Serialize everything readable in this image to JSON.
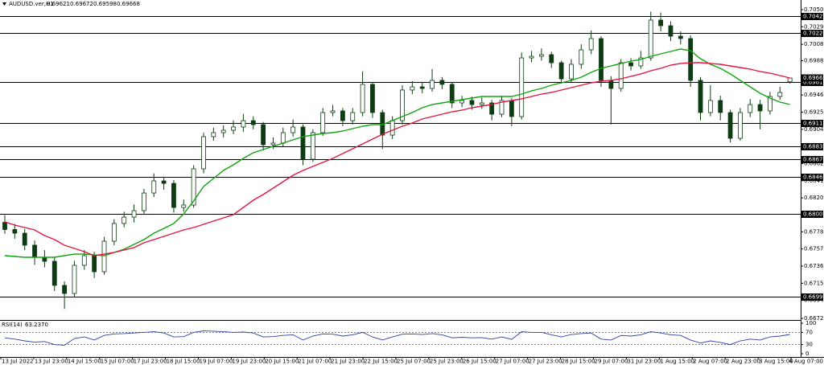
{
  "chart_data": {
    "type": "candlestick",
    "symbol": "AUDUSD.ver,H1",
    "header_ohlc": [
      0.69621,
      0.69672,
      0.69598,
      0.69668
    ],
    "candle_color": "#0d3b12",
    "open": [
      0.679,
      0.67813,
      0.67768,
      0.67621,
      0.67473,
      0.67424,
      0.67129,
      0.6703,
      0.67375,
      0.67493,
      0.67296,
      0.6767,
      0.67887,
      0.67965,
      0.68044,
      0.6826,
      0.68408,
      0.68378,
      0.68083,
      0.68113,
      0.68556,
      0.6895,
      0.68999,
      0.69028,
      0.69068,
      0.69146,
      0.69097,
      0.68851,
      0.68871,
      0.68999,
      0.69068,
      0.68674,
      0.68999,
      0.69245,
      0.69265,
      0.69146,
      0.69245,
      0.6959,
      0.69245,
      0.68969,
      0.69146,
      0.69521,
      0.6956,
      0.6954,
      0.69639,
      0.6959,
      0.69363,
      0.69393,
      0.69343,
      0.69363,
      0.69225,
      0.69393,
      0.69196,
      0.69914,
      0.69934,
      0.69954,
      0.69855,
      0.69658,
      0.69836,
      0.70013,
      0.70151,
      0.69639,
      0.6954,
      0.69855,
      0.69816,
      0.69914,
      0.70377,
      0.70308,
      0.7018,
      0.70151,
      0.69639,
      0.69245,
      0.69393,
      0.69245,
      0.6893,
      0.69245,
      0.69343,
      0.69265,
      0.69442,
      0.69621
    ],
    "high": [
      0.6799,
      0.6788,
      0.6782,
      0.6768,
      0.6756,
      0.6748,
      0.6718,
      0.6743,
      0.6756,
      0.6754,
      0.6772,
      0.6794,
      0.6803,
      0.6812,
      0.6831,
      0.685,
      0.6846,
      0.6842,
      0.6818,
      0.686,
      0.69,
      0.6906,
      0.6909,
      0.6915,
      0.6923,
      0.692,
      0.6913,
      0.6894,
      0.6906,
      0.6916,
      0.691,
      0.6904,
      0.693,
      0.6934,
      0.693,
      0.693,
      0.6975,
      0.6962,
      0.6928,
      0.692,
      0.6958,
      0.6963,
      0.6962,
      0.6978,
      0.6968,
      0.6962,
      0.6945,
      0.6944,
      0.6943,
      0.694,
      0.6945,
      0.6942,
      0.6998,
      0.7,
      0.7003,
      0.6999,
      0.6988,
      0.699,
      0.7008,
      0.7025,
      0.7018,
      0.6969,
      0.699,
      0.6991,
      0.7,
      0.7048,
      0.7047,
      0.7036,
      0.7024,
      0.7019,
      0.6968,
      0.6958,
      0.6945,
      0.6928,
      0.693,
      0.6941,
      0.694,
      0.695,
      0.6956,
      0.69672
    ],
    "low": [
      0.6776,
      0.677,
      0.6756,
      0.6738,
      0.6735,
      0.6706,
      0.6684,
      0.6699,
      0.6732,
      0.6722,
      0.6726,
      0.6762,
      0.6784,
      0.679,
      0.68,
      0.6821,
      0.683,
      0.6802,
      0.6803,
      0.6808,
      0.685,
      0.689,
      0.6894,
      0.6898,
      0.6901,
      0.6904,
      0.6878,
      0.688,
      0.6883,
      0.6895,
      0.686,
      0.6864,
      0.6896,
      0.692,
      0.6908,
      0.691,
      0.692,
      0.6918,
      0.688,
      0.6892,
      0.691,
      0.6947,
      0.6948,
      0.695,
      0.6953,
      0.693,
      0.6931,
      0.6928,
      0.6929,
      0.6915,
      0.6919,
      0.6908,
      0.6916,
      0.6986,
      0.6988,
      0.6979,
      0.696,
      0.6962,
      0.6978,
      0.6996,
      0.6956,
      0.691,
      0.695,
      0.6976,
      0.6978,
      0.6988,
      0.7024,
      0.7012,
      0.7008,
      0.6956,
      0.6915,
      0.692,
      0.6915,
      0.6888,
      0.689,
      0.6919,
      0.6904,
      0.6922,
      0.694,
      0.69598
    ],
    "close": [
      0.67813,
      0.67768,
      0.67621,
      0.67473,
      0.67424,
      0.67129,
      0.6703,
      0.67375,
      0.67493,
      0.67296,
      0.6767,
      0.67887,
      0.67965,
      0.68044,
      0.6826,
      0.68408,
      0.68378,
      0.68083,
      0.68113,
      0.68556,
      0.6895,
      0.68999,
      0.69028,
      0.69068,
      0.69146,
      0.69097,
      0.68851,
      0.68871,
      0.68999,
      0.69068,
      0.68674,
      0.68999,
      0.69245,
      0.69265,
      0.69146,
      0.69245,
      0.6959,
      0.69245,
      0.68969,
      0.69146,
      0.69521,
      0.6956,
      0.6954,
      0.69639,
      0.6959,
      0.69363,
      0.69393,
      0.69343,
      0.69363,
      0.69225,
      0.69393,
      0.69196,
      0.69914,
      0.69934,
      0.69954,
      0.69855,
      0.69658,
      0.69836,
      0.70013,
      0.70151,
      0.69639,
      0.6954,
      0.69855,
      0.69816,
      0.69914,
      0.70377,
      0.70308,
      0.7018,
      0.70151,
      0.69639,
      0.69245,
      0.69393,
      0.69245,
      0.6893,
      0.69245,
      0.69343,
      0.69265,
      0.69442,
      0.69491,
      0.69668
    ],
    "ma_lines": [
      {
        "color": "#11a311",
        "values": [
          0.67493,
          0.67483,
          0.67473,
          0.67473,
          0.67473,
          0.67473,
          0.67493,
          0.67512,
          0.67512,
          0.67503,
          0.67493,
          0.67532,
          0.67572,
          0.67631,
          0.6769,
          0.67768,
          0.67827,
          0.67887,
          0.68005,
          0.68162,
          0.68339,
          0.68438,
          0.68536,
          0.68605,
          0.68684,
          0.68753,
          0.68792,
          0.68832,
          0.68871,
          0.6891,
          0.6895,
          0.68969,
          0.68989,
          0.68999,
          0.69019,
          0.69048,
          0.69078,
          0.69097,
          0.69097,
          0.69147,
          0.69196,
          0.69245,
          0.69304,
          0.69343,
          0.69363,
          0.69383,
          0.69403,
          0.69422,
          0.69442,
          0.69442,
          0.69442,
          0.69442,
          0.69471,
          0.69511,
          0.6954,
          0.6958,
          0.69609,
          0.69639,
          0.69678,
          0.69737,
          0.69786,
          0.69816,
          0.69846,
          0.69875,
          0.69895,
          0.69934,
          0.69964,
          0.69993,
          0.70023,
          0.70003,
          0.69905,
          0.69836,
          0.69786,
          0.69718,
          0.69639,
          0.6956,
          0.69481,
          0.69422,
          0.69373,
          0.69343
        ]
      },
      {
        "color": "#e3163f",
        "values": [
          0.67906,
          0.67867,
          0.67837,
          0.67808,
          0.67739,
          0.6769,
          0.67621,
          0.67581,
          0.67542,
          0.67493,
          0.67512,
          0.67532,
          0.67562,
          0.67591,
          0.6765,
          0.6769,
          0.67729,
          0.67768,
          0.67808,
          0.67837,
          0.67877,
          0.67916,
          0.67955,
          0.67995,
          0.68083,
          0.68172,
          0.68241,
          0.6832,
          0.68398,
          0.68477,
          0.68536,
          0.68585,
          0.68635,
          0.68684,
          0.68743,
          0.68802,
          0.68861,
          0.6892,
          0.68979,
          0.69028,
          0.69078,
          0.69117,
          0.69166,
          0.69196,
          0.69225,
          0.69255,
          0.69275,
          0.69304,
          0.69324,
          0.69343,
          0.69373,
          0.69393,
          0.69412,
          0.69442,
          0.69471,
          0.69491,
          0.69521,
          0.6955,
          0.6958,
          0.69609,
          0.69629,
          0.69639,
          0.69658,
          0.69688,
          0.69718,
          0.69757,
          0.69786,
          0.69826,
          0.69846,
          0.69855,
          0.69855,
          0.69846,
          0.69836,
          0.69816,
          0.69796,
          0.69777,
          0.69747,
          0.69727,
          0.69698,
          0.69668
        ]
      }
    ],
    "ylim": [
      0.66725,
      0.70505
    ],
    "yticks": [
      {
        "value": 0.70505,
        "label": "0.70505"
      },
      {
        "value": 0.70295,
        "label": "0.70295"
      },
      {
        "value": 0.7008,
        "label": "0.70080"
      },
      {
        "value": 0.6988,
        "label": "0.69880"
      },
      {
        "value": 0.6946,
        "label": "0.69460"
      },
      {
        "value": 0.6925,
        "label": "0.69250"
      },
      {
        "value": 0.6904,
        "label": "0.69040"
      },
      {
        "value": 0.6862,
        "label": "0.68620"
      },
      {
        "value": 0.6841,
        "label": "0.68410"
      },
      {
        "value": 0.682,
        "label": "0.68200"
      },
      {
        "value": 0.67785,
        "label": "0.67785"
      },
      {
        "value": 0.67575,
        "label": "0.67575"
      },
      {
        "value": 0.67365,
        "label": "0.67365"
      },
      {
        "value": 0.67155,
        "label": "0.67155"
      },
      {
        "value": 0.66945,
        "label": "0.66945"
      },
      {
        "value": 0.66725,
        "label": "0.66725"
      }
    ],
    "levels": [
      {
        "value": 0.70422,
        "label": "0.70422"
      },
      {
        "value": 0.70222,
        "label": "0.70222"
      },
      {
        "value": 0.69617,
        "label": "0.69617"
      },
      {
        "value": 0.69116,
        "label": "0.69116"
      },
      {
        "value": 0.68832,
        "label": "0.68832"
      },
      {
        "value": 0.68672,
        "label": "0.68672"
      },
      {
        "value": 0.68462,
        "label": "0.68462"
      },
      {
        "value": 0.68,
        "label": "0.68000"
      },
      {
        "value": 0.66991,
        "label": "0.66991"
      }
    ],
    "xlabels": [
      "13 Jul 2022",
      "13 Jul 23:00",
      "14 Jul 15:00",
      "15 Jul 07:00",
      "17 Jul 23:00",
      "18 Jul 15:00",
      "19 Jul 07:00",
      "19 Jul 23:00",
      "20 Jul 15:00",
      "21 Jul 07:00",
      "21 Jul 23:00",
      "22 Jul 15:00",
      "25 Jul 07:00",
      "25 Jul 23:00",
      "26 Jul 15:00",
      "27 Jul 07:00",
      "27 Jul 23:00",
      "28 Jul 15:00",
      "29 Jul 07:00",
      "31 Jul 23:00",
      "1 Aug 15:00",
      "2 Aug 07:00",
      "2 Aug 23:00",
      "3 Aug 15:00",
      "4 Aug 07:00"
    ],
    "rsi": {
      "name": "RSI(14)",
      "current": {
        "value": 63.237,
        "label": "63.2370"
      },
      "color": "#2f3fa8",
      "ylim": [
        0,
        100
      ],
      "yticks": [
        100,
        70,
        30,
        0
      ],
      "values": [
        52,
        48,
        42,
        38,
        40,
        30,
        28,
        50,
        55,
        45,
        60,
        65,
        66,
        68,
        70,
        72,
        68,
        55,
        56,
        70,
        75,
        74,
        72,
        70,
        71,
        68,
        55,
        56,
        60,
        62,
        45,
        58,
        65,
        64,
        58,
        62,
        70,
        55,
        45,
        55,
        64,
        65,
        63,
        66,
        62,
        52,
        54,
        52,
        53,
        48,
        55,
        47,
        72,
        70,
        70,
        62,
        55,
        63,
        66,
        68,
        48,
        45,
        60,
        58,
        62,
        72,
        68,
        62,
        60,
        45,
        35,
        42,
        37,
        30,
        42,
        48,
        45,
        55,
        58,
        63.237
      ]
    }
  }
}
